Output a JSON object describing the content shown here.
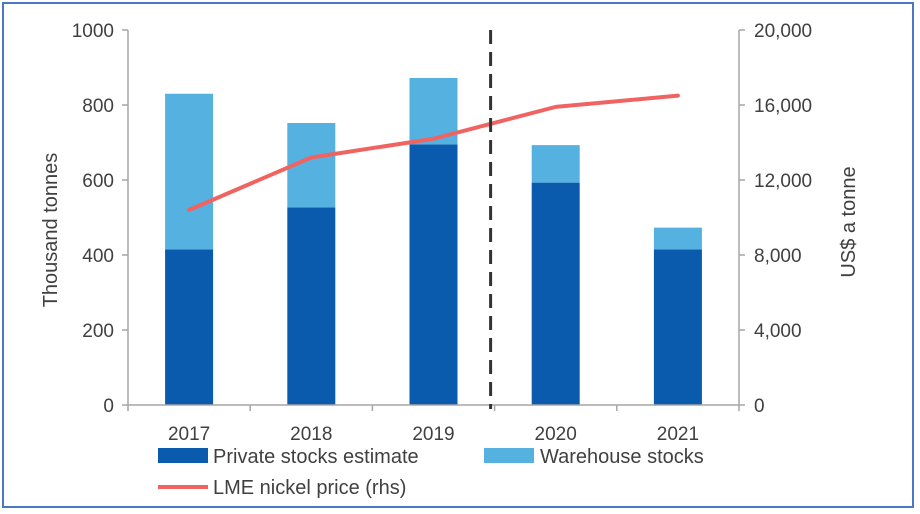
{
  "chart_data": {
    "type": "bar",
    "stacked": true,
    "categories": [
      "2017",
      "2018",
      "2019",
      "2020",
      "2021"
    ],
    "series": [
      {
        "name": "Private stocks estimate",
        "type": "bar",
        "axis": "left",
        "color": "#0a5aae",
        "values": [
          415,
          527,
          695,
          593,
          415
        ]
      },
      {
        "name": "Warehouse stocks",
        "type": "bar",
        "axis": "left",
        "color": "#55b1e0",
        "values": [
          415,
          225,
          177,
          100,
          58
        ]
      },
      {
        "name": "LME nickel price (rhs)",
        "type": "line",
        "axis": "right",
        "color": "#ef6461",
        "values": [
          10400,
          13200,
          14200,
          15900,
          16500
        ]
      }
    ],
    "ylabel": "Thousand tonnes",
    "y2label": "US$ a tonne",
    "ylim": [
      0,
      1000
    ],
    "y2lim": [
      0,
      20000
    ],
    "yticks": [
      "0",
      "200",
      "400",
      "600",
      "800",
      "1000"
    ],
    "y2ticks": [
      "0",
      "4,000",
      "8,000",
      "12,000",
      "16,000",
      "20,000"
    ],
    "forecast_divider_after": "2019",
    "legend": "bottom"
  }
}
